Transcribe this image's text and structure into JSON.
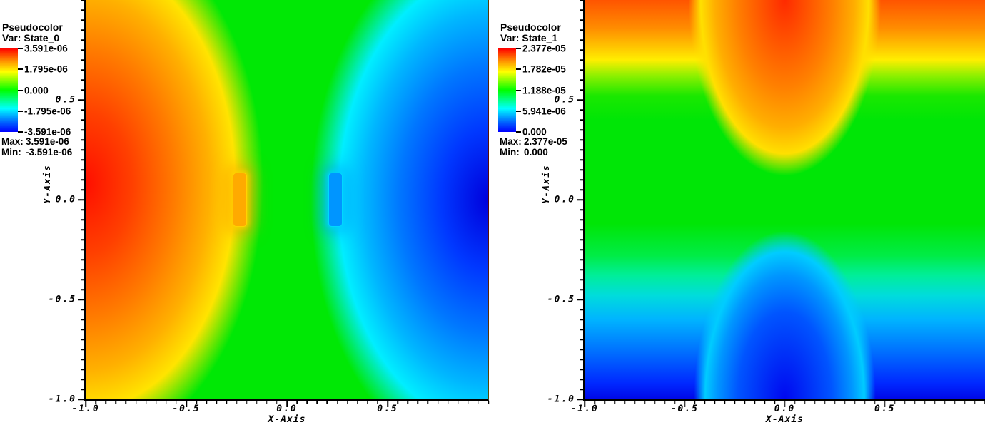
{
  "figure": {
    "background": "#ffffff",
    "renderer": "pseudocolor plot pair"
  },
  "colors": {
    "colormap_name": "rainbow (red = max, blue = min)",
    "colormap_stops": [
      "#ff0000",
      "#ffff00",
      "#00ff00",
      "#00ffff",
      "#0000ff"
    ],
    "text": "#000000",
    "mid_green": "#00e805"
  },
  "plots": [
    {
      "legend": {
        "title": "Pseudocolor",
        "var": "Var: State_0",
        "ticks": [
          "3.591e-06",
          "1.795e-06",
          "0.000",
          "-1.795e-06",
          "-3.591e-06"
        ],
        "max_label": "Max:",
        "max_value": "3.591e-06",
        "min_label": "Min:",
        "min_value": "-3.591e-06"
      },
      "x_axis": {
        "title": "X-Axis",
        "range": [
          -1.0,
          1.0
        ],
        "minor_step": 0.05,
        "major": [
          {
            "v": -1.0,
            "label": "-1.0"
          },
          {
            "v": -0.5,
            "label": "-0.5"
          },
          {
            "v": 0.0,
            "label": "0.0"
          },
          {
            "v": 0.5,
            "label": "0.5"
          }
        ]
      },
      "y_axis": {
        "title": "Y-Axis",
        "range": [
          -1.0,
          1.0
        ],
        "minor_step": 0.05,
        "major": [
          {
            "v": 0.5,
            "label": "0.5"
          },
          {
            "v": 0.0,
            "label": "0.0"
          },
          {
            "v": -0.5,
            "label": "-0.5"
          },
          {
            "v": -1.0,
            "label": "-1.0"
          }
        ]
      }
    },
    {
      "legend": {
        "title": "Pseudocolor",
        "var": "Var: State_1",
        "ticks": [
          "2.377e-05",
          "1.782e-05",
          "1.188e-05",
          "5.941e-06",
          "0.000"
        ],
        "max_label": "Max:",
        "max_value": "2.377e-05",
        "min_label": "Min:",
        "min_value": "0.000"
      },
      "x_axis": {
        "title": "X-Axis",
        "range": [
          -1.0,
          1.0
        ],
        "minor_step": 0.05,
        "major": [
          {
            "v": -1.0,
            "label": "-1.0"
          },
          {
            "v": -0.5,
            "label": "-0.5"
          },
          {
            "v": 0.0,
            "label": "0.0"
          },
          {
            "v": 0.5,
            "label": "0.5"
          }
        ]
      },
      "y_axis": {
        "title": "Y-Axis",
        "range": [
          -1.0,
          1.0
        ],
        "minor_step": 0.05,
        "major": [
          {
            "v": 0.5,
            "label": "0.5"
          },
          {
            "v": 0.0,
            "label": "0.0"
          },
          {
            "v": -0.5,
            "label": "-0.5"
          },
          {
            "v": -1.0,
            "label": "-1.0"
          }
        ]
      }
    }
  ],
  "chart_data": [
    {
      "type": "heatmap",
      "title": "Pseudocolor Var: State_0",
      "xlabel": "X-Axis",
      "ylabel": "Y-Axis",
      "xlim": [
        -1.0,
        1.0
      ],
      "ylim": [
        -1.0,
        1.0
      ],
      "x_ticks": [
        -1.0,
        -0.5,
        0.0,
        0.5
      ],
      "y_ticks": [
        0.5,
        0.0,
        -0.5,
        -1.0
      ],
      "value_min": -3.591e-06,
      "value_max": 3.591e-06,
      "colorbar_ticks": [
        3.591e-06,
        1.795e-06,
        0.0,
        -1.795e-06,
        -3.591e-06
      ],
      "colormap": "rainbow (red = max, blue = min)",
      "legend_position": "top-left",
      "grid": false,
      "x": [
        -1.0,
        -0.5,
        0.0,
        0.5,
        1.0
      ],
      "y": [
        1.0,
        0.5,
        0.0,
        -0.5,
        -1.0
      ],
      "values": [
        [
          1.2e-06,
          4e-07,
          0.0,
          -4e-07,
          -1.2e-06
        ],
        [
          2.4e-06,
          9e-07,
          0.0,
          -9e-07,
          -2.4e-06
        ],
        [
          3.5e-06,
          1.6e-06,
          0.0,
          -1.6e-06,
          -3.5e-06
        ],
        [
          2.4e-06,
          9e-07,
          0.0,
          -9e-07,
          -2.4e-06
        ],
        [
          1.2e-06,
          4e-07,
          0.0,
          -4e-07,
          -1.2e-06
        ]
      ],
      "note": "values estimated from rainbow colormap; field is antisymmetric in x: red/orange maximum lobe on left half, blue/cyan minimum lobe on right half, green zero line along x=0; two electrode contacts at x=+/-0.25, |y|<0.13 (left contact orange-hot, right contact cyan-cold)"
    },
    {
      "type": "heatmap",
      "title": "Pseudocolor Var: State_1",
      "xlabel": "X-Axis",
      "ylabel": "Y-Axis",
      "xlim": [
        -1.0,
        1.0
      ],
      "ylim": [
        -1.0,
        1.0
      ],
      "x_ticks": [
        -1.0,
        -0.5,
        0.0,
        0.5
      ],
      "y_ticks": [
        0.5,
        0.0,
        -0.5,
        -1.0
      ],
      "value_min": 0.0,
      "value_max": 2.377e-05,
      "colorbar_ticks": [
        2.377e-05,
        1.782e-05,
        1.188e-05,
        5.941e-06,
        0.0
      ],
      "colormap": "rainbow (red = max, blue = min)",
      "legend_position": "top-left",
      "grid": false,
      "x": [
        -1.0,
        -0.5,
        0.0,
        0.5,
        1.0
      ],
      "y": [
        1.0,
        0.5,
        0.0,
        -0.5,
        -1.0
      ],
      "values": [
        [
          1.9e-05,
          2.2e-05,
          2.377e-05,
          2.2e-05,
          1.9e-05
        ],
        [
          1.5e-05,
          1.7e-05,
          2e-05,
          1.7e-05,
          1.5e-05
        ],
        [
          1.2e-05,
          1.2e-05,
          1.2e-05,
          1.2e-05,
          1.2e-05
        ],
        [
          7e-06,
          5e-06,
          3e-06,
          5e-06,
          7e-06
        ],
        [
          2e-06,
          1e-06,
          0.0,
          1e-06,
          2e-06
        ]
      ],
      "note": "values estimated from rainbow colormap; vertical gradient: red maximum at top edge with hot orange tongue descending at center to y=0.13, green mid band near y=0, blue minimum at bottom with cold bulge rising at center to y=-0.1"
    }
  ]
}
